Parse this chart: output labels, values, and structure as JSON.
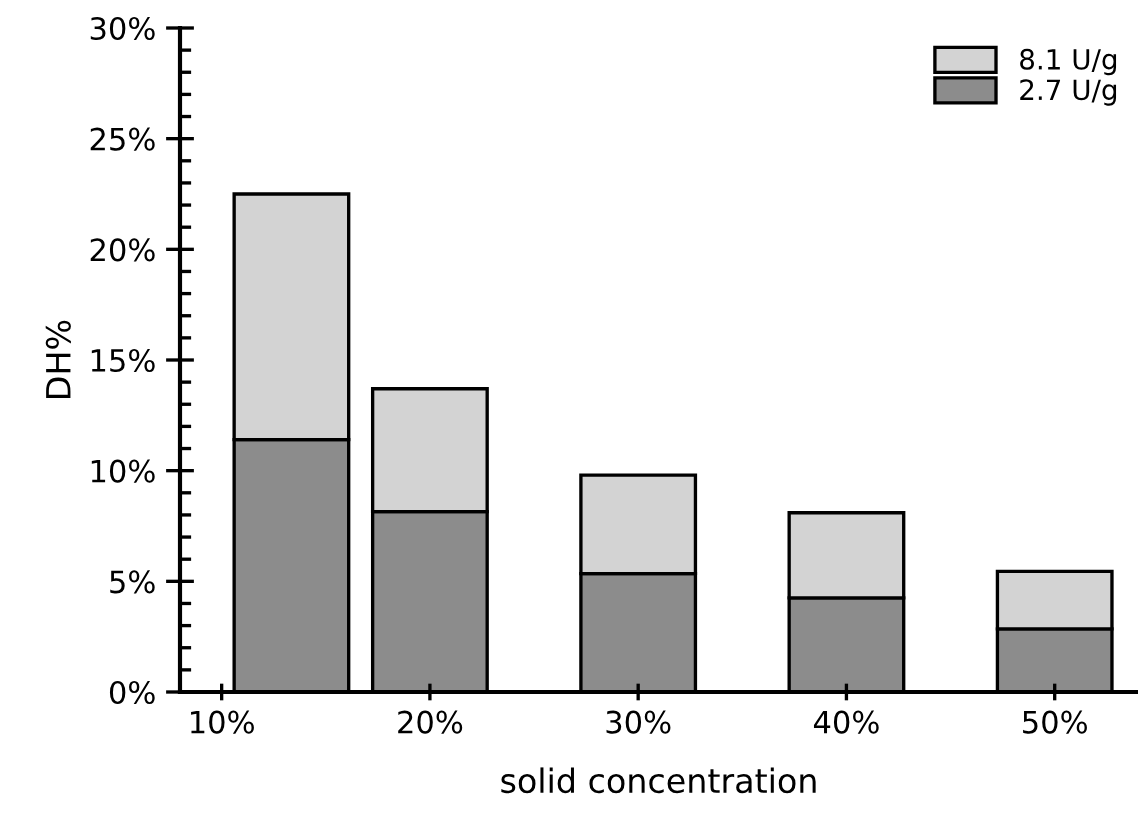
{
  "chart_data": {
    "type": "bar",
    "stacked": true,
    "xlabel": "solid concentration",
    "ylabel": "DH%",
    "x": [
      13.35,
      20,
      30,
      40,
      50
    ],
    "series": [
      {
        "name": "2.7 U/g",
        "color": "#8c8c8c",
        "values": [
          11.4,
          8.15,
          5.35,
          4.25,
          2.85
        ]
      },
      {
        "name": "8.1 U/g",
        "color": "#d3d3d3",
        "values": [
          11.1,
          5.55,
          4.45,
          3.85,
          2.6
        ]
      }
    ],
    "xlim": [
      8,
      54
    ],
    "xticks": [
      {
        "value": 10,
        "label": "10%"
      },
      {
        "value": 20,
        "label": "20%"
      },
      {
        "value": 30,
        "label": "30%"
      },
      {
        "value": 40,
        "label": "40%"
      },
      {
        "value": 50,
        "label": "50%"
      }
    ],
    "ylim": [
      0,
      30
    ],
    "yticks": [
      {
        "value": 0,
        "label": "0%"
      },
      {
        "value": 5,
        "label": "5%"
      },
      {
        "value": 10,
        "label": "10%"
      },
      {
        "value": 15,
        "label": "15%"
      },
      {
        "value": 20,
        "label": "20%"
      },
      {
        "value": 25,
        "label": "25%"
      },
      {
        "value": 30,
        "label": "30%"
      }
    ],
    "grid": false,
    "legend": "top right"
  }
}
